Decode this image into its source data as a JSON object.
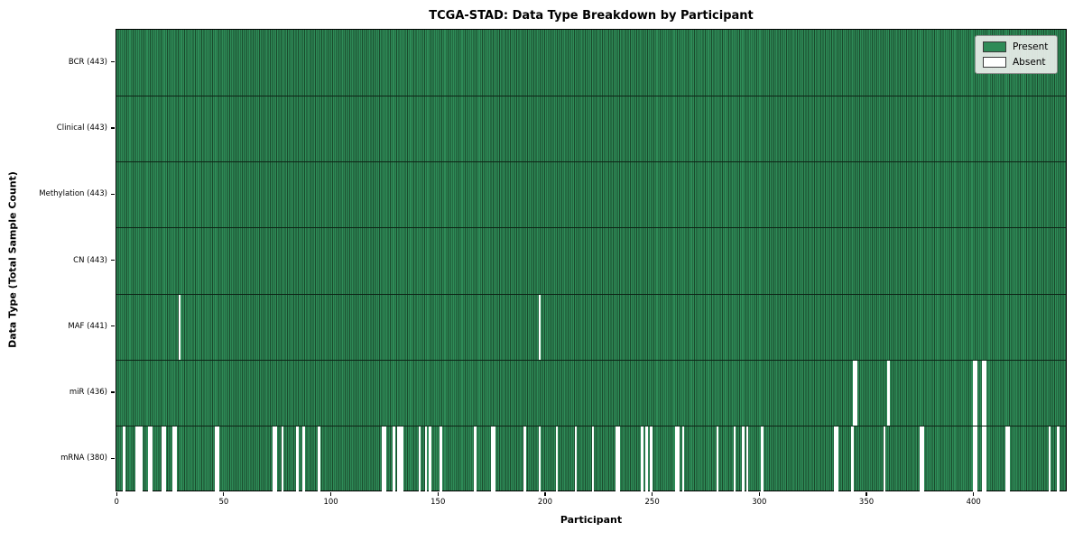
{
  "chart_data": {
    "type": "heatmap",
    "title": "TCGA-STAD: Data Type Breakdown by Participant",
    "xlabel": "Participant",
    "ylabel": "Data Type (Total Sample Count)",
    "legend": {
      "position": "upper right",
      "present_label": "Present",
      "absent_label": "Absent"
    },
    "colors": {
      "present": "#2e8b57",
      "present_edge": "#1a4a2c",
      "absent": "#ffffff"
    },
    "total_participants": 443,
    "x_axis": {
      "min": 0,
      "max": 443,
      "tick_values": [
        0,
        50,
        100,
        150,
        200,
        250,
        300,
        350,
        400
      ]
    },
    "rows": [
      {
        "data_type": "BCR",
        "label": "BCR (443)",
        "present_count": 443,
        "absent_participants": []
      },
      {
        "data_type": "Clinical",
        "label": "Clinical (443)",
        "present_count": 443,
        "absent_participants": []
      },
      {
        "data_type": "Methylation",
        "label": "Methylation (443)",
        "present_count": 443,
        "absent_participants": []
      },
      {
        "data_type": "CN",
        "label": "CN (443)",
        "present_count": 443,
        "absent_participants": []
      },
      {
        "data_type": "MAF",
        "label": "MAF (441)",
        "present_count": 441,
        "absent_participants": [
          29,
          197
        ]
      },
      {
        "data_type": "miR",
        "label": "miR (436)",
        "present_count": 436,
        "absent_participants": [
          344,
          345,
          360,
          400,
          401,
          404,
          405
        ]
      },
      {
        "data_type": "mRNA",
        "label": "mRNA (380)",
        "present_count": 380,
        "absent_participants": [
          3,
          9,
          10,
          11,
          15,
          16,
          21,
          22,
          26,
          27,
          46,
          47,
          73,
          74,
          77,
          84,
          87,
          94,
          124,
          125,
          129,
          131,
          132,
          133,
          141,
          144,
          146,
          151,
          167,
          175,
          176,
          190,
          197,
          205,
          214,
          222,
          233,
          234,
          245,
          247,
          249,
          261,
          262,
          264,
          280,
          288,
          292,
          294,
          301,
          335,
          336,
          343,
          358,
          375,
          376,
          400,
          401,
          404,
          405,
          415,
          416,
          435,
          439
        ]
      }
    ]
  }
}
